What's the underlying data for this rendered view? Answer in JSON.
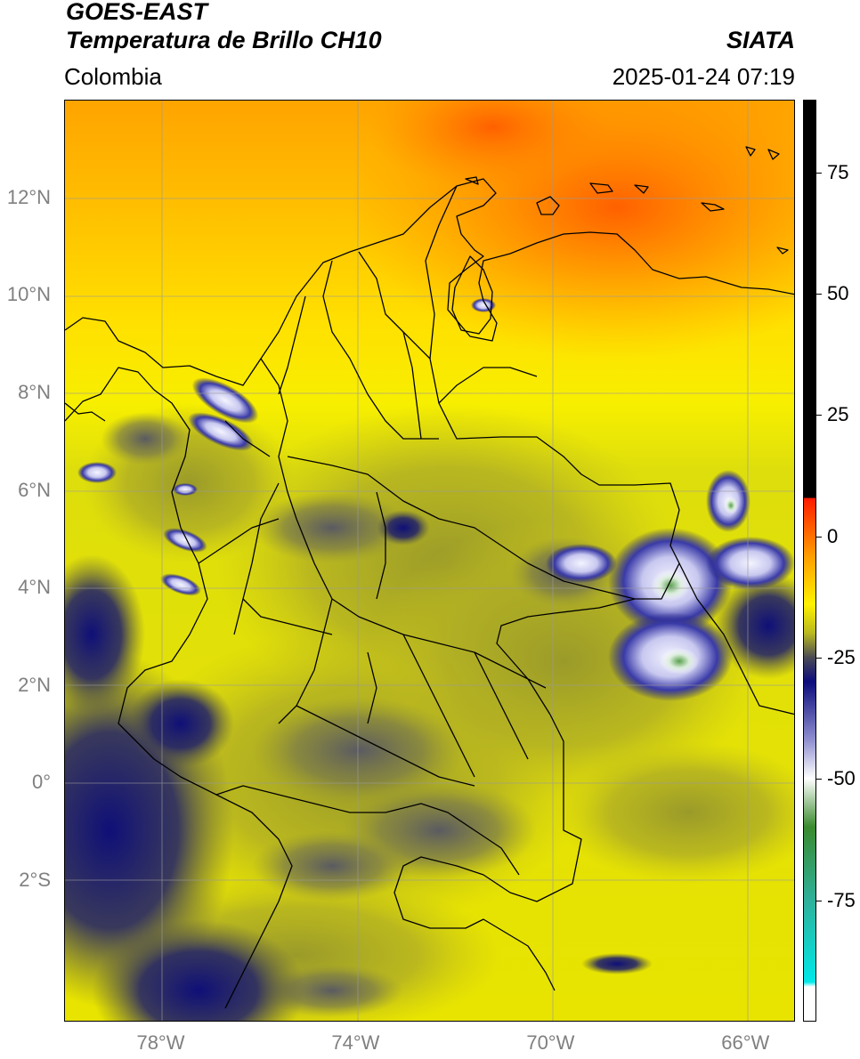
{
  "header": {
    "title_line1": "GOES-EAST",
    "title_line2": "Temperatura de Brillo CH10",
    "brand": "SIATA",
    "region": "Colombia",
    "datetime": "2025-01-24 07:19"
  },
  "axes": {
    "lat_labels": [
      {
        "text": "12°N",
        "lat": 12
      },
      {
        "text": "10°N",
        "lat": 10
      },
      {
        "text": "8°N",
        "lat": 8
      },
      {
        "text": "6°N",
        "lat": 6
      },
      {
        "text": "4°N",
        "lat": 4
      },
      {
        "text": "2°N",
        "lat": 2
      },
      {
        "text": "0°",
        "lat": 0
      },
      {
        "text": "2°S",
        "lat": -2
      }
    ],
    "lon_labels": [
      {
        "text": "78°W",
        "lon": -78
      },
      {
        "text": "74°W",
        "lon": -74
      },
      {
        "text": "70°W",
        "lon": -70
      },
      {
        "text": "66°W",
        "lon": -66
      }
    ],
    "lon_range": [
      -80.0,
      -65.0
    ],
    "lat_range": [
      -4.9,
      14.0
    ]
  },
  "colorbar": {
    "range": [
      -100,
      90
    ],
    "ticks": [
      "75",
      "50",
      "25",
      "0",
      "-25",
      "-50",
      "-75"
    ],
    "tick_values": [
      75,
      50,
      25,
      0,
      -25,
      -50,
      -75
    ],
    "stops": [
      {
        "value": 90,
        "color": "#000000"
      },
      {
        "value": 8,
        "color": "#000000"
      },
      {
        "value": 7.9,
        "color": "#ff1a00"
      },
      {
        "value": -4,
        "color": "#ff9d00"
      },
      {
        "value": -14,
        "color": "#fff200"
      },
      {
        "value": -20,
        "color": "#b8b820"
      },
      {
        "value": -25,
        "color": "#4a4a55"
      },
      {
        "value": -30,
        "color": "#0c0c7c"
      },
      {
        "value": -42,
        "color": "#8f8fd0"
      },
      {
        "value": -50,
        "color": "#ffffff"
      },
      {
        "value": -60,
        "color": "#3a8a2e"
      },
      {
        "value": -75,
        "color": "#2fb09a"
      },
      {
        "value": -92,
        "color": "#00e8e8"
      },
      {
        "value": -93,
        "color": "#ffffff"
      },
      {
        "value": -100,
        "color": "#ffffff"
      }
    ]
  },
  "colors": {
    "sea_warm": "#ff7a00",
    "land_yellow": "#f3ef00",
    "olive": "#b5b024",
    "cloud_dark": "#1a1a78",
    "grid": "#9a9a9a"
  }
}
